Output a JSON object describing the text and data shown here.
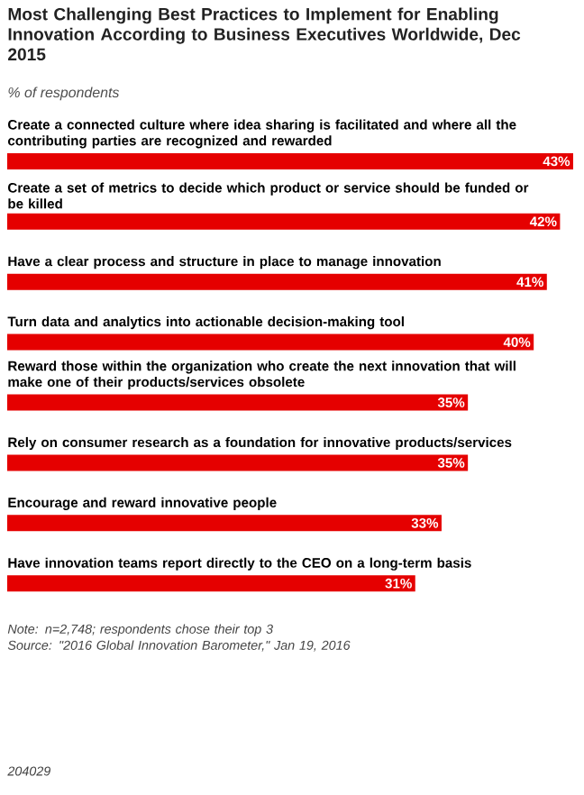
{
  "chart_data": {
    "type": "bar",
    "orientation": "horizontal",
    "title": "Most Challenging Best Practices to Implement for Enabling Innovation According to Business Executives Worldwide, Dec 2015",
    "subtitle": "% of respondents",
    "categories": [
      "Create a connected culture where idea sharing is facilitated and where all the contributing parties are recognized and rewarded",
      "Create a set of metrics to decide which product or service should be funded or be killed",
      "Have a clear process and structure in place to manage innovation",
      "Turn data and analytics into actionable decision-making tool",
      "Reward those within the organization who create the next innovation that will make one of their products/services obsolete",
      "Rely on consumer research as a foundation for innovative products/services",
      "Encourage and reward innovative people",
      "Have innovation teams report directly to the CEO on a long-term basis"
    ],
    "values": [
      43,
      42,
      41,
      40,
      35,
      35,
      33,
      31
    ],
    "value_labels": [
      "43%",
      "42%",
      "41%",
      "40%",
      "35%",
      "35%",
      "33%",
      "31%"
    ],
    "color": "#e50000",
    "annotations": [
      "Note: n=2,748; respondents chose their top 3",
      "Source: \"2016 Global Innovation Barometer,\" Jan 19, 2016",
      "204029"
    ]
  }
}
